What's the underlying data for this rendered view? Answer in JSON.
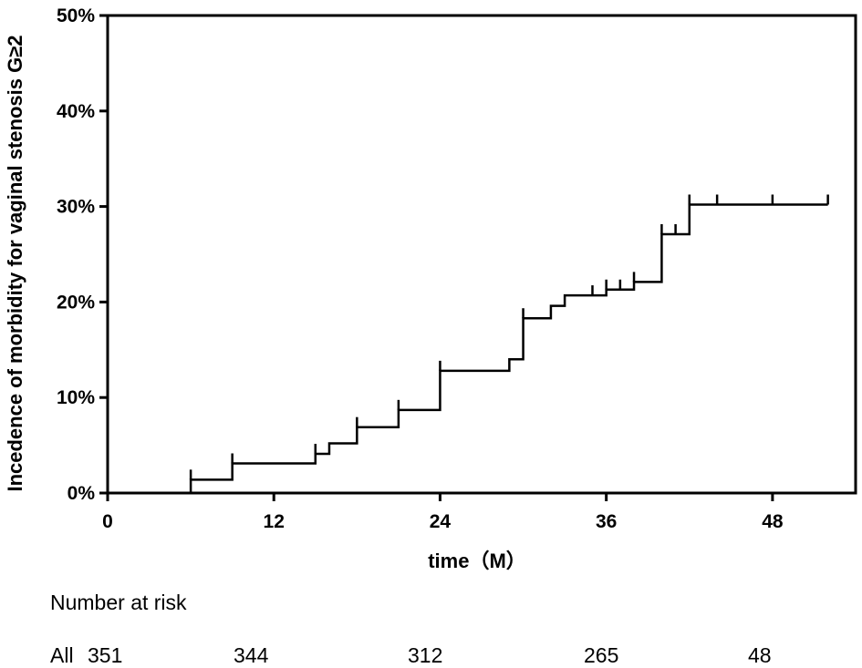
{
  "chart_data": {
    "type": "line",
    "subtype": "kaplan-meier cumulative incidence step plot",
    "ylabel": "Incedence of morbidity for vaginal stenosis G≥2",
    "xlabel": "time（M）",
    "xlim": [
      0,
      54
    ],
    "ylim": [
      0,
      50
    ],
    "x_ticks": [
      0,
      12,
      24,
      36,
      48
    ],
    "x_tick_labels": [
      "0",
      "12",
      "24",
      "36",
      "48"
    ],
    "y_ticks": [
      0,
      10,
      20,
      30,
      40,
      50
    ],
    "y_tick_labels": [
      "0%",
      "10%",
      "20%",
      "30%",
      "40%",
      "50%"
    ],
    "series": [
      {
        "color": "#000000",
        "steps": [
          {
            "x": 0,
            "y": 0
          },
          {
            "x": 6,
            "y": 1.4
          },
          {
            "x": 9,
            "y": 3.1
          },
          {
            "x": 15,
            "y": 4.1
          },
          {
            "x": 16,
            "y": 5.2
          },
          {
            "x": 18,
            "y": 6.9
          },
          {
            "x": 21,
            "y": 8.7
          },
          {
            "x": 24,
            "y": 12.8
          },
          {
            "x": 29,
            "y": 14.0
          },
          {
            "x": 30,
            "y": 18.3
          },
          {
            "x": 32,
            "y": 19.6
          },
          {
            "x": 33,
            "y": 20.7
          },
          {
            "x": 36,
            "y": 21.3
          },
          {
            "x": 38,
            "y": 22.1
          },
          {
            "x": 40,
            "y": 27.1
          },
          {
            "x": 42,
            "y": 30.2
          }
        ],
        "x_end": 52,
        "censor_marks": [
          {
            "x": 6,
            "y": 1.4
          },
          {
            "x": 9,
            "y": 3.1
          },
          {
            "x": 15,
            "y": 4.1
          },
          {
            "x": 18,
            "y": 6.9
          },
          {
            "x": 21,
            "y": 8.7
          },
          {
            "x": 24,
            "y": 12.8
          },
          {
            "x": 30,
            "y": 18.3
          },
          {
            "x": 35,
            "y": 20.7
          },
          {
            "x": 36,
            "y": 21.3
          },
          {
            "x": 37,
            "y": 21.3
          },
          {
            "x": 38,
            "y": 22.1
          },
          {
            "x": 40,
            "y": 27.1
          },
          {
            "x": 41,
            "y": 27.1
          },
          {
            "x": 42,
            "y": 30.2
          },
          {
            "x": 44,
            "y": 30.2
          },
          {
            "x": 48,
            "y": 30.2
          },
          {
            "x": 52,
            "y": 30.2
          }
        ]
      }
    ],
    "grid": false,
    "legend": "none"
  },
  "risk_table": {
    "heading": "Number at risk",
    "row_label": "All",
    "values": [
      "351",
      "344",
      "312",
      "265",
      "48"
    ]
  }
}
